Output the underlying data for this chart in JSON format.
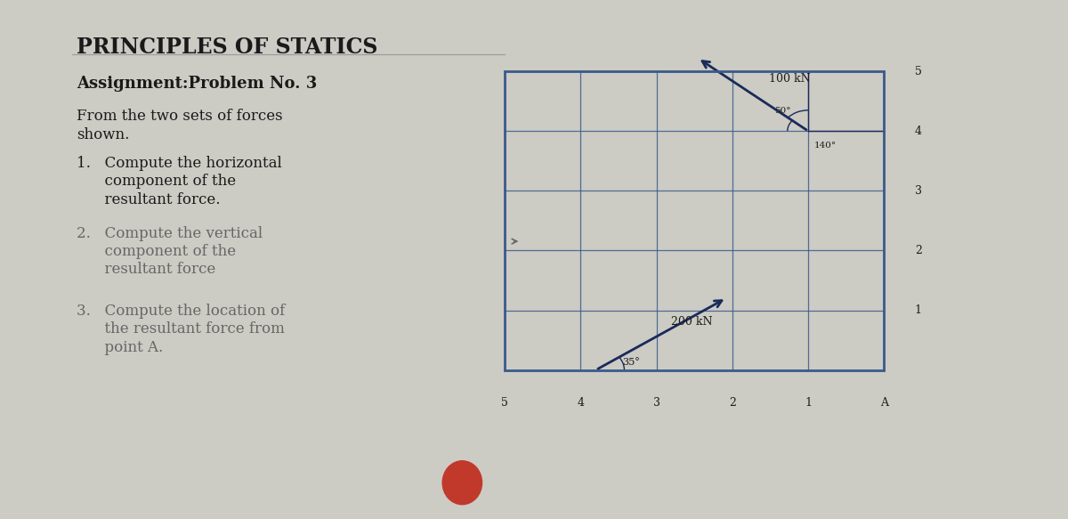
{
  "title": "PRINCIPLES OF STATICS",
  "assignment": "Assignment:Problem No. 3",
  "intro_line1": "From the two sets of forces",
  "intro_line2": "shown.",
  "item1_line1": "1.   Compute the horizontal",
  "item1_line2": "      component of the",
  "item1_line3": "      resultant force.",
  "item2_line1": "2.   Compute the vertical",
  "item2_line2": "      component of the",
  "item2_line3": "      resultant force",
  "item3_line1": "3.   Compute the location of",
  "item3_line2": "      the resultant force from",
  "item3_line3": "      point A.",
  "bg_color": "#cccbc4",
  "diagram_bg": "#bdd0e0",
  "grid_color": "#3a5a8a",
  "force1_label": "100 kN",
  "force2_label": "200 kN",
  "angle1_label": "50°",
  "angle2_label": "140°",
  "angle3_label": "35°",
  "x_ticks": [
    "5",
    "4",
    "3",
    "2",
    "1",
    "A"
  ],
  "y_ticks": [
    "1",
    "2",
    "3",
    "4",
    "5"
  ],
  "text_color": "#1a1a1a",
  "circle_color": "#c0392b",
  "arrow_color": "#1a2a5a",
  "faded_color": "#666666"
}
